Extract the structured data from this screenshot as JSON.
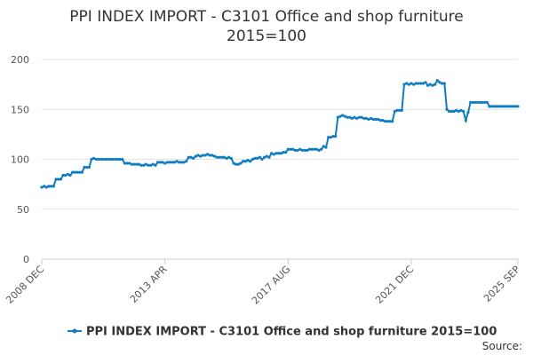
{
  "chart_data": {
    "type": "line",
    "title_lines": [
      "PPI INDEX IMPORT - C3101 Office and shop furniture",
      "2015=100"
    ],
    "categories": [
      "2008 DEC",
      null,
      null,
      null,
      null,
      null,
      null,
      null,
      null,
      null,
      null,
      null,
      null,
      null,
      null,
      null,
      null,
      null,
      null,
      null,
      null,
      null,
      null,
      null,
      null,
      null,
      null,
      null,
      null,
      null,
      null,
      null,
      null,
      null,
      null,
      null,
      null,
      null,
      null,
      null,
      null,
      null,
      null,
      null,
      null,
      null,
      null,
      null,
      null,
      null,
      null,
      null,
      "2013 APR",
      null,
      null,
      null,
      null,
      null,
      null,
      null,
      null,
      null,
      null,
      null,
      null,
      null,
      null,
      null,
      null,
      null,
      null,
      null,
      null,
      null,
      null,
      null,
      null,
      null,
      null,
      null,
      null,
      null,
      null,
      null,
      null,
      null,
      null,
      null,
      null,
      null,
      null,
      null,
      null,
      null,
      null,
      null,
      null,
      null,
      null,
      null,
      null,
      null,
      null,
      null,
      "2017 AUG",
      null,
      null,
      null,
      null,
      null,
      null,
      null,
      null,
      null,
      null,
      null,
      null,
      null,
      null,
      null,
      null,
      null,
      null,
      null,
      null,
      null,
      null,
      null,
      null,
      null,
      null,
      null,
      null,
      null,
      null,
      null,
      null,
      null,
      null,
      null,
      null,
      null,
      null,
      null,
      null,
      null,
      null,
      null,
      null,
      null,
      null,
      null,
      null,
      null,
      null,
      null,
      "2021 DEC",
      null,
      null,
      null,
      null,
      null,
      null,
      null,
      null,
      null,
      null,
      null,
      null,
      null,
      null,
      null,
      null,
      null,
      null,
      null,
      null,
      null,
      null,
      null,
      null,
      null,
      null,
      null,
      null,
      null,
      null,
      null,
      null,
      null,
      null,
      null,
      null,
      null,
      null,
      null,
      null,
      null,
      null,
      null,
      null,
      "2025 SEP"
    ],
    "series": [
      {
        "name": "PPI INDEX IMPORT - C3101 Office and shop furniture 2015=100",
        "color": "#0f7dc2",
        "values": [
          72,
          73,
          72,
          73,
          73,
          73,
          80,
          80,
          80,
          84,
          84,
          85,
          84,
          87,
          87,
          87,
          87,
          87,
          92,
          92,
          92,
          100,
          101,
          100,
          100,
          100,
          100,
          100,
          100,
          100,
          100,
          100,
          100,
          100,
          100,
          96,
          96,
          96,
          95,
          95,
          95,
          95,
          94,
          94,
          95,
          94,
          94,
          95,
          94,
          97,
          97,
          97,
          96,
          97,
          97,
          97,
          97,
          98,
          97,
          97,
          97,
          98,
          102,
          102,
          101,
          103,
          104,
          103,
          104,
          104,
          105,
          104,
          104,
          103,
          102,
          102,
          102,
          102,
          101,
          102,
          101,
          96,
          95,
          95,
          96,
          98,
          98,
          99,
          98,
          100,
          101,
          101,
          102,
          100,
          102,
          103,
          102,
          106,
          105,
          106,
          106,
          106,
          107,
          107,
          110,
          110,
          110,
          109,
          109,
          110,
          109,
          109,
          109,
          110,
          110,
          110,
          110,
          109,
          110,
          113,
          112,
          122,
          122,
          123,
          123,
          142,
          143,
          144,
          143,
          142,
          142,
          141,
          142,
          141,
          142,
          142,
          141,
          141,
          140,
          141,
          140,
          140,
          140,
          139,
          139,
          138,
          138,
          138,
          138,
          148,
          149,
          149,
          149,
          175,
          176,
          175,
          176,
          175,
          176,
          176,
          176,
          176,
          177,
          174,
          175,
          174,
          175,
          179,
          177,
          176,
          176,
          150,
          148,
          148,
          148,
          149,
          148,
          149,
          148,
          139,
          147,
          157,
          157,
          157,
          157,
          157,
          157,
          157,
          157,
          153,
          153,
          153,
          153,
          153,
          153,
          153,
          153,
          153,
          153,
          153,
          153,
          153
        ]
      }
    ],
    "ylim": [
      0,
      200
    ],
    "yticks": [
      0,
      50,
      100,
      150,
      200
    ],
    "grid": true,
    "source_label": "Source:"
  }
}
